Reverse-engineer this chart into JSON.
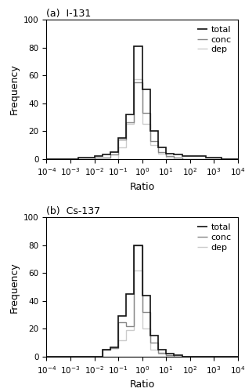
{
  "title_a": "(a)  I-131",
  "title_b": "(b)  Cs-137",
  "xlabel": "Ratio",
  "ylabel": "Frequency",
  "xlim_log": [
    -4,
    4
  ],
  "ylim": [
    0,
    100
  ],
  "yticks": [
    0,
    20,
    40,
    60,
    80,
    100
  ],
  "colors": {
    "total": "#111111",
    "conc": "#888888",
    "dep": "#cccccc"
  },
  "linewidths": {
    "total": 1.2,
    "conc": 1.0,
    "dep": 1.0
  },
  "bin_edges_log": [
    -4,
    -3.33,
    -2.67,
    -2,
    -1.67,
    -1.33,
    -1,
    -0.67,
    -0.33,
    0,
    0.33,
    0.67,
    1,
    1.33,
    1.67,
    2,
    2.67,
    3.33,
    4
  ],
  "I131": {
    "total": [
      0,
      0,
      1,
      2,
      3,
      5,
      15,
      32,
      81,
      50,
      20,
      8,
      4,
      3,
      2,
      2,
      1,
      0
    ],
    "conc": [
      0,
      0,
      0,
      1,
      1,
      3,
      14,
      26,
      55,
      33,
      13,
      5,
      2,
      1,
      0,
      0,
      0,
      0
    ],
    "dep": [
      0,
      0,
      0,
      0,
      0,
      0,
      8,
      25,
      57,
      25,
      10,
      4,
      1,
      0,
      0,
      0,
      0,
      0
    ]
  },
  "Cs137": {
    "total": [
      0,
      0,
      0,
      0,
      5,
      7,
      29,
      45,
      80,
      44,
      15,
      5,
      2,
      1,
      0,
      0,
      0,
      0
    ],
    "conc": [
      0,
      0,
      0,
      0,
      5,
      6,
      25,
      22,
      80,
      32,
      10,
      3,
      1,
      0,
      0,
      0,
      0,
      0
    ],
    "dep": [
      0,
      0,
      0,
      0,
      5,
      6,
      12,
      19,
      62,
      20,
      5,
      2,
      0,
      0,
      0,
      0,
      0,
      0
    ]
  }
}
